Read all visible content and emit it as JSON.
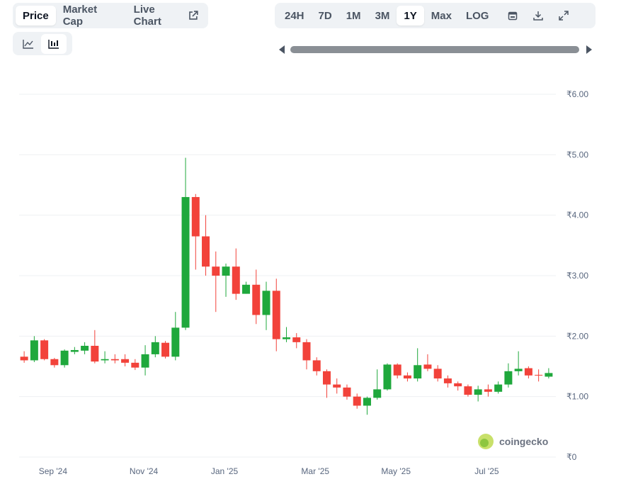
{
  "toolbar": {
    "tabs": [
      "Price",
      "Market Cap",
      "Live Chart"
    ],
    "active_tab": 0,
    "ranges": [
      "24H",
      "7D",
      "1M",
      "3M",
      "1Y",
      "Max",
      "LOG"
    ],
    "active_range": 4
  },
  "watermark": "coingecko",
  "chart_data": {
    "type": "candlestick",
    "categories": [
      null,
      null,
      null,
      "Sep '24",
      null,
      null,
      null,
      null,
      null,
      null,
      null,
      null,
      "Nov '24",
      null,
      null,
      null,
      null,
      null,
      null,
      null,
      "Jan '25",
      null,
      null,
      null,
      null,
      null,
      null,
      null,
      null,
      "Mar '25",
      null,
      null,
      null,
      null,
      null,
      null,
      null,
      "May '25",
      null,
      null,
      null,
      null,
      null,
      null,
      null,
      null,
      "Jul '25",
      null,
      null,
      null,
      null,
      null,
      null
    ],
    "open": [
      1.66,
      1.6,
      1.93,
      1.62,
      1.52,
      1.74,
      1.76,
      1.84,
      1.6,
      1.62,
      1.62,
      1.56,
      1.48,
      1.7,
      1.89,
      1.66,
      2.14,
      4.3,
      3.65,
      3.15,
      3.0,
      3.15,
      2.7,
      2.85,
      2.35,
      2.75,
      1.95,
      1.98,
      1.9,
      1.6,
      1.42,
      1.2,
      1.15,
      1.0,
      0.85,
      0.98,
      1.12,
      1.53,
      1.35,
      1.3,
      1.53,
      1.46,
      1.3,
      1.22,
      1.17,
      1.03,
      1.12,
      1.08,
      1.2,
      1.42,
      1.47,
      1.36,
      1.33
    ],
    "high": [
      1.75,
      2.0,
      1.95,
      1.64,
      1.78,
      1.82,
      1.9,
      2.1,
      1.75,
      1.7,
      1.7,
      1.62,
      1.85,
      2.0,
      1.92,
      2.4,
      4.95,
      4.35,
      4.0,
      3.4,
      3.2,
      3.45,
      2.9,
      3.1,
      2.9,
      2.95,
      2.15,
      2.05,
      1.95,
      1.65,
      1.45,
      1.3,
      1.2,
      1.05,
      1.0,
      1.45,
      1.55,
      1.55,
      1.4,
      1.8,
      1.7,
      1.52,
      1.35,
      1.25,
      1.2,
      1.18,
      1.2,
      1.25,
      1.55,
      1.75,
      1.5,
      1.45,
      1.47
    ],
    "low": [
      1.56,
      1.57,
      1.6,
      1.48,
      1.48,
      1.7,
      1.7,
      1.55,
      1.55,
      1.55,
      1.5,
      1.44,
      1.35,
      1.65,
      1.63,
      1.6,
      2.1,
      3.1,
      3.0,
      2.4,
      2.65,
      2.6,
      2.7,
      2.2,
      2.1,
      1.75,
      1.9,
      1.8,
      1.45,
      1.35,
      0.98,
      1.05,
      0.95,
      0.8,
      0.7,
      0.95,
      1.1,
      1.3,
      1.25,
      1.25,
      1.42,
      1.25,
      1.15,
      1.1,
      1.0,
      0.92,
      1.0,
      1.05,
      1.15,
      1.35,
      1.3,
      1.25,
      1.3
    ],
    "close": [
      1.6,
      1.93,
      1.62,
      1.52,
      1.76,
      1.77,
      1.84,
      1.58,
      1.62,
      1.6,
      1.56,
      1.48,
      1.7,
      1.9,
      1.66,
      2.14,
      4.3,
      3.65,
      3.15,
      3.0,
      3.15,
      2.7,
      2.85,
      2.35,
      2.75,
      1.95,
      1.98,
      1.9,
      1.6,
      1.42,
      1.2,
      1.15,
      1.0,
      0.85,
      0.98,
      1.12,
      1.53,
      1.35,
      1.3,
      1.52,
      1.46,
      1.3,
      1.22,
      1.17,
      1.03,
      1.12,
      1.08,
      1.2,
      1.42,
      1.46,
      1.35,
      1.35,
      1.39
    ],
    "up_color": "#1fa83c",
    "down_color": "#f2423a",
    "ylim": [
      0,
      6
    ],
    "yticks": [
      {
        "value": 0,
        "label": "₹0"
      },
      {
        "value": 1,
        "label": "₹1.00"
      },
      {
        "value": 2,
        "label": "₹2.00"
      },
      {
        "value": 3,
        "label": "₹3.00"
      },
      {
        "value": 4,
        "label": "₹4.00"
      },
      {
        "value": 5,
        "label": "₹5.00"
      },
      {
        "value": 6,
        "label": "₹6.00"
      }
    ],
    "grid": true
  }
}
